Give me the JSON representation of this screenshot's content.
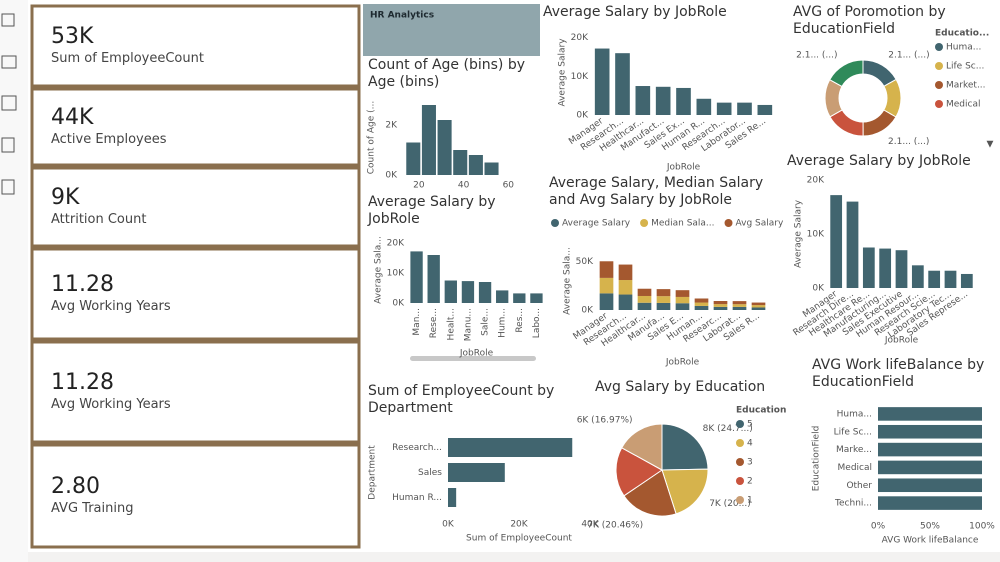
{
  "header": {
    "title": "HR Analytics"
  },
  "kpis": [
    {
      "value": "53K",
      "label": "Sum of EmployeeCount"
    },
    {
      "value": "44K",
      "label": "Active Employees"
    },
    {
      "value": "9K",
      "label": "Attrition Count"
    },
    {
      "value": "11.28",
      "label": "Avg Working Years"
    },
    {
      "value": "11.28",
      "label": "Avg Working Years"
    },
    {
      "value": "2.80",
      "label": "AVG Training"
    }
  ],
  "chart_data": [
    {
      "type": "histogram",
      "title": "Count of Age (bins) by Age (bins)",
      "y_label": "Count of Age (...",
      "bins": [
        14,
        21,
        28,
        35,
        42,
        49,
        56
      ],
      "values": [
        1300,
        2800,
        2200,
        1000,
        800,
        500
      ],
      "color": "#41656f",
      "xlim": [
        12,
        63
      ],
      "xticks": [
        20,
        40,
        60
      ],
      "ylim": [
        0,
        3000
      ],
      "yticks": [
        {
          "value": 0,
          "label": "0K"
        },
        {
          "value": 2000,
          "label": "2K"
        }
      ]
    },
    {
      "type": "bar",
      "title": "Average Salary by JobRole",
      "x_label": "JobRole",
      "y_label": "Average Salary",
      "categories": [
        "Manager",
        "Research...",
        "Healthcar...",
        "Manufact...",
        "Sales Ex...",
        "Human R...",
        "Research...",
        "Laborator...",
        "Sales Re..."
      ],
      "values": [
        17200,
        16000,
        7500,
        7300,
        7000,
        4200,
        3200,
        3200,
        2600
      ],
      "color": "#41656f",
      "ylim": [
        0,
        22000
      ],
      "yticks": [
        {
          "value": 0,
          "label": "0K"
        },
        {
          "value": 10000,
          "label": "10K"
        },
        {
          "value": 20000,
          "label": "20K"
        }
      ]
    },
    {
      "type": "donut",
      "title": "AVG of Poromotion by EducationField",
      "legend_title": "Educatio...",
      "categories": [
        "Huma...",
        "Life Sc...",
        "Market...",
        "Medical",
        null,
        null
      ],
      "values": [
        2.17,
        2.12,
        2.14,
        2.16,
        2.09,
        2.19
      ],
      "value_labels": [
        "2.1... (...)",
        null,
        "2.1... (...)",
        null,
        null,
        "2.1... (...)"
      ],
      "colors": [
        "#41656f",
        "#d6b34c",
        "#a4582f",
        "#c9533d",
        "#c99d74",
        "#2f8a5a"
      ]
    },
    {
      "type": "bar",
      "title": "Average Salary by JobRole",
      "x_label": "JobRole",
      "y_label": "Average Sala...",
      "categories": [
        "Man...",
        "Rese...",
        "Healt...",
        "Manu...",
        "Sale...",
        "Hum...",
        "Res...",
        "Labo..."
      ],
      "values": [
        17200,
        16000,
        7500,
        7300,
        7000,
        4200,
        3200,
        3200
      ],
      "color": "#41656f",
      "ylim": [
        0,
        22000
      ],
      "yticks": [
        {
          "value": 0,
          "label": "0K"
        },
        {
          "value": 10000,
          "label": "10K"
        },
        {
          "value": 20000,
          "label": "20K"
        }
      ]
    },
    {
      "type": "bar",
      "stacked": true,
      "title": "Average Salary, Median Salary and Avg Salary by JobRole",
      "x_label": "JobRole",
      "y_label": "Average Sala...",
      "categories": [
        "Manager",
        "Research...",
        "Healthcar...",
        "Manufa...",
        "Sales E...",
        "Human...",
        "Researc...",
        "Laborat...",
        "Sales R..."
      ],
      "series": [
        {
          "name": "Average Salary",
          "color": "#41656f",
          "values": [
            17200,
            16000,
            7500,
            7300,
            7000,
            4200,
            3200,
            3200,
            2600
          ]
        },
        {
          "name": "Median Sala...",
          "color": "#d6b34c",
          "values": [
            16000,
            15000,
            7000,
            7000,
            6500,
            3500,
            2900,
            2800,
            2500
          ]
        },
        {
          "name": "Avg Salary",
          "color": "#a4582f",
          "values": [
            17200,
            16000,
            7500,
            7300,
            7000,
            4200,
            3200,
            3200,
            2600
          ]
        }
      ],
      "ylim": [
        0,
        60000
      ],
      "yticks": [
        {
          "value": 0,
          "label": "0K"
        },
        {
          "value": 50000,
          "label": "50K"
        }
      ]
    },
    {
      "type": "bar",
      "title": "Average Salary by JobRole",
      "x_label": "JobRole",
      "y_label": "Average Salary",
      "categories": [
        "Manager",
        "Research Dire...",
        "Healthcare Re...",
        "Manufacturing...",
        "Sales Executive",
        "Human Resour...",
        "Research Scie...",
        "Laboratory Tec...",
        "Sales Represe..."
      ],
      "values": [
        17200,
        16000,
        7500,
        7300,
        7000,
        4200,
        3200,
        3200,
        2600
      ],
      "color": "#41656f",
      "ylim": [
        0,
        20000
      ],
      "yticks": [
        {
          "value": 0,
          "label": "0K"
        },
        {
          "value": 10000,
          "label": "10K"
        },
        {
          "value": 20000,
          "label": "20K"
        }
      ]
    },
    {
      "type": "barh",
      "title": "Sum of EmployeeCount by Department",
      "x_label": "Sum of EmployeeCount",
      "y_label": "Department",
      "categories": [
        "Research...",
        "Sales",
        "Human R..."
      ],
      "values": [
        35000,
        16000,
        2300
      ],
      "color": "#41656f",
      "xlim": [
        0,
        40000
      ],
      "xticks": [
        {
          "value": 0,
          "label": "0K"
        },
        {
          "value": 20000,
          "label": "20K"
        },
        {
          "value": 40000,
          "label": "40K"
        }
      ]
    },
    {
      "type": "pie",
      "title": "Avg Salary by Education",
      "legend_title": "Education",
      "categories": [
        "5",
        "4",
        "3",
        "2",
        "1"
      ],
      "values": [
        8000,
        6600,
        6630,
        5675,
        5500
      ],
      "value_labels": [
        "8K (24.7...)",
        "7K (20...)",
        "7K (20.46%)",
        null,
        "6K (16.97%)"
      ],
      "colors": [
        "#41656f",
        "#d6b34c",
        "#a4582f",
        "#c9533d",
        "#c99d74"
      ]
    },
    {
      "type": "barh",
      "title": "AVG Work lifeBalance by EducationField",
      "x_label": "AVG Work lifeBalance",
      "y_label": "EducationField",
      "categories": [
        "Huma...",
        "Life Sc...",
        "Marke...",
        "Medical",
        "Other",
        "Techni..."
      ],
      "values": [
        100,
        100,
        100,
        100,
        100,
        100
      ],
      "color": "#41656f",
      "xlim": [
        0,
        100
      ],
      "xticks": [
        {
          "value": 0,
          "label": "0%"
        },
        {
          "value": 50,
          "label": "50%"
        },
        {
          "value": 100,
          "label": "100%"
        }
      ]
    }
  ]
}
